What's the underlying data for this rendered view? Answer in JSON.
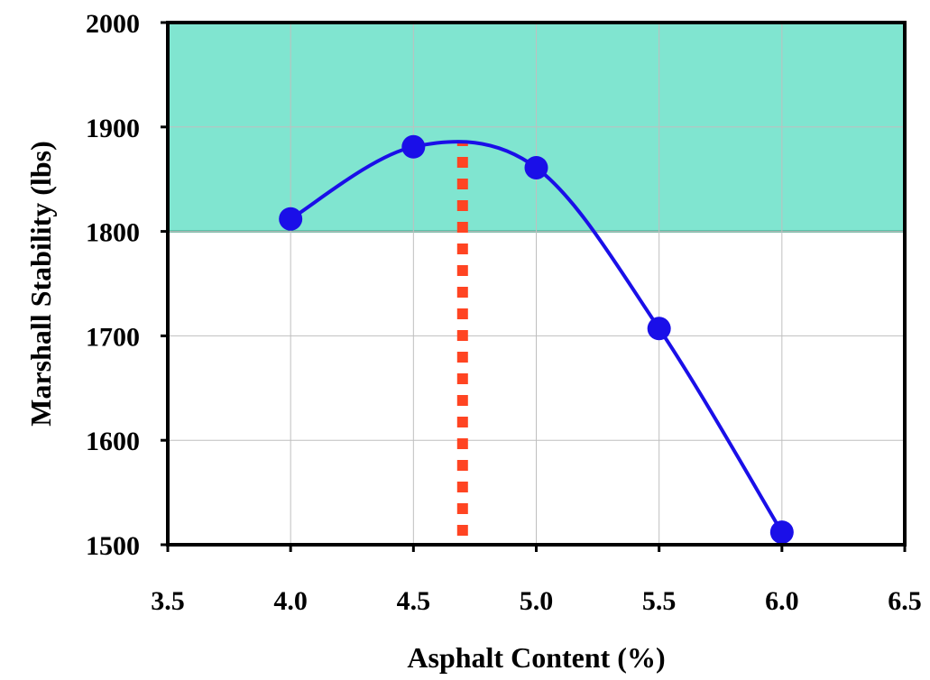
{
  "chart_data": {
    "type": "line",
    "xlabel": "Asphalt Content (%)",
    "ylabel": "Marshall Stability (lbs)",
    "xlim": [
      3.5,
      6.5
    ],
    "ylim": [
      1500,
      2000
    ],
    "x_ticks": [
      "3.5",
      "4.0",
      "4.5",
      "5.0",
      "5.5",
      "6.0",
      "6.5"
    ],
    "y_ticks": [
      "1500",
      "1600",
      "1700",
      "1800",
      "1900",
      "2000"
    ],
    "grid": true,
    "series": [
      {
        "x": [
          4.0,
          4.5,
          5.0,
          5.5,
          6.0
        ],
        "y": [
          1812,
          1881,
          1861,
          1707,
          1512
        ],
        "color": "#1a0fe8",
        "marker": "circle",
        "smooth": true
      }
    ],
    "annotations": {
      "shaded_band": {
        "y_from": 1800,
        "y_to": 2000,
        "color": "#80e5d0"
      },
      "optimum_line": {
        "x": 4.7,
        "y_from": 1500,
        "y_to": 1885,
        "color": "#ff4422",
        "style": "dotted"
      }
    }
  }
}
